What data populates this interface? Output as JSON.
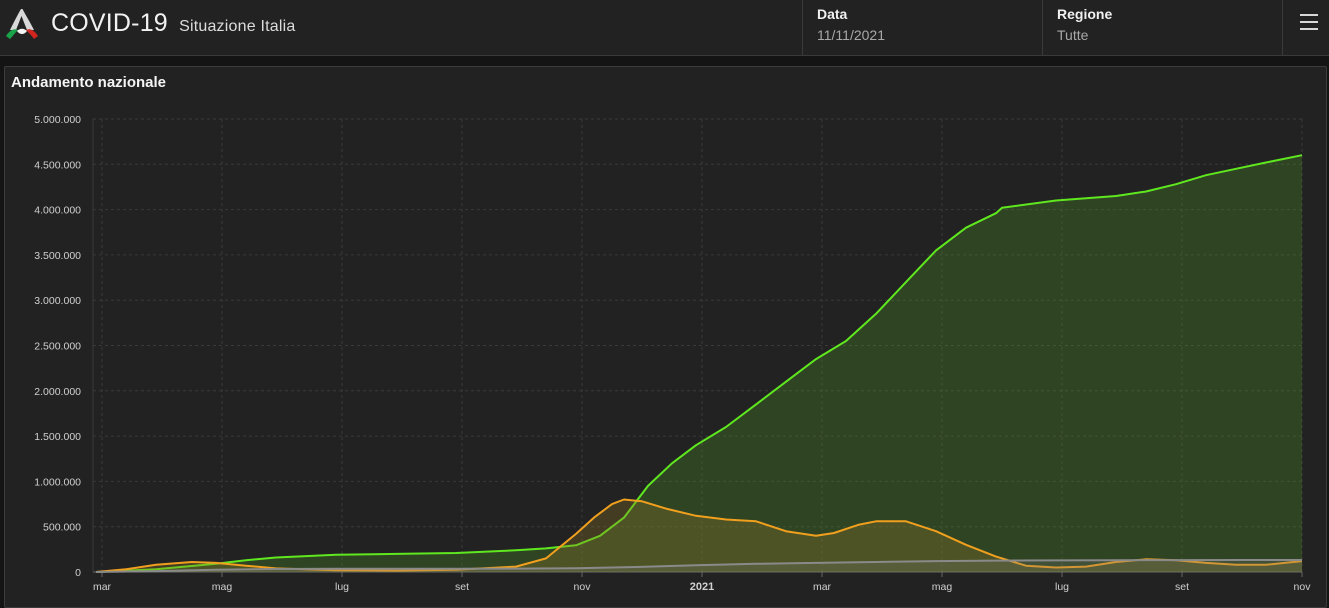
{
  "header": {
    "title": "COVID-19",
    "subtitle": "Situazione Italia",
    "date_label": "Data",
    "date_value": "11/11/2021",
    "region_label": "Regione",
    "region_value": "Tutte"
  },
  "panel": {
    "title": "Andamento nazionale"
  },
  "colors": {
    "green": "#5fe81f",
    "orange": "#f0a01e",
    "gray": "#8a8a8a"
  },
  "icons": {
    "logo": "italy-flag-icon",
    "menu": "hamburger-menu-icon"
  },
  "chart_data": {
    "type": "area",
    "title": "Andamento nazionale",
    "xlabel": "",
    "ylabel": "",
    "x_unit": "months since Feb 2020",
    "xlim": [
      -0.05,
      20.1
    ],
    "ylim": [
      0,
      5000000
    ],
    "yticks": [
      "0",
      "500.000",
      "1.000.000",
      "1.500.000",
      "2.000.000",
      "2.500.000",
      "3.000.000",
      "3.500.000",
      "4.000.000",
      "4.500.000",
      "5.000.000"
    ],
    "xticks": [
      {
        "x": 0.1,
        "label": "mar",
        "bold": false
      },
      {
        "x": 2.1,
        "label": "mag",
        "bold": false
      },
      {
        "x": 4.1,
        "label": "lug",
        "bold": false
      },
      {
        "x": 6.1,
        "label": "set",
        "bold": false
      },
      {
        "x": 8.1,
        "label": "nov",
        "bold": false
      },
      {
        "x": 10.1,
        "label": "2021",
        "bold": true
      },
      {
        "x": 12.1,
        "label": "mar",
        "bold": false
      },
      {
        "x": 14.1,
        "label": "mag",
        "bold": false
      },
      {
        "x": 16.1,
        "label": "lug",
        "bold": false
      },
      {
        "x": 18.1,
        "label": "set",
        "bold": false
      },
      {
        "x": 20.1,
        "label": "nov",
        "bold": false
      }
    ],
    "grid": true,
    "series": [
      {
        "color": "#5fe81f",
        "fill": "rgba(80,150,40,0.30)",
        "points": [
          [
            0,
            0
          ],
          [
            1,
            30000
          ],
          [
            2,
            90000
          ],
          [
            2.5,
            130000
          ],
          [
            3,
            160000
          ],
          [
            4,
            190000
          ],
          [
            5,
            200000
          ],
          [
            6,
            210000
          ],
          [
            7,
            240000
          ],
          [
            7.5,
            260000
          ],
          [
            8,
            295000
          ],
          [
            8.4,
            400000
          ],
          [
            8.8,
            600000
          ],
          [
            9.2,
            950000
          ],
          [
            9.6,
            1200000
          ],
          [
            10,
            1400000
          ],
          [
            10.5,
            1600000
          ],
          [
            11,
            1850000
          ],
          [
            11.5,
            2100000
          ],
          [
            12,
            2350000
          ],
          [
            12.5,
            2550000
          ],
          [
            13,
            2850000
          ],
          [
            13.5,
            3200000
          ],
          [
            14,
            3550000
          ],
          [
            14.5,
            3800000
          ],
          [
            15,
            3960000
          ],
          [
            15.1,
            4020000
          ],
          [
            16,
            4100000
          ],
          [
            17,
            4150000
          ],
          [
            17.5,
            4200000
          ],
          [
            18,
            4280000
          ],
          [
            18.5,
            4380000
          ],
          [
            19,
            4450000
          ],
          [
            19.5,
            4520000
          ],
          [
            20.1,
            4600000
          ]
        ]
      },
      {
        "color": "#f0a01e",
        "fill": "rgba(150,120,40,0.30)",
        "points": [
          [
            0,
            0
          ],
          [
            0.5,
            30000
          ],
          [
            1,
            80000
          ],
          [
            1.6,
            110000
          ],
          [
            2,
            100000
          ],
          [
            2.5,
            70000
          ],
          [
            3,
            40000
          ],
          [
            4,
            20000
          ],
          [
            5,
            15000
          ],
          [
            6,
            25000
          ],
          [
            7,
            60000
          ],
          [
            7.5,
            150000
          ],
          [
            8,
            420000
          ],
          [
            8.3,
            600000
          ],
          [
            8.6,
            750000
          ],
          [
            8.8,
            800000
          ],
          [
            9.1,
            780000
          ],
          [
            9.5,
            700000
          ],
          [
            10,
            620000
          ],
          [
            10.5,
            580000
          ],
          [
            11,
            560000
          ],
          [
            11.5,
            450000
          ],
          [
            12,
            400000
          ],
          [
            12.3,
            430000
          ],
          [
            12.7,
            520000
          ],
          [
            13,
            560000
          ],
          [
            13.5,
            560000
          ],
          [
            14,
            450000
          ],
          [
            14.5,
            300000
          ],
          [
            15,
            170000
          ],
          [
            15.5,
            70000
          ],
          [
            16,
            50000
          ],
          [
            16.5,
            60000
          ],
          [
            17,
            110000
          ],
          [
            17.5,
            140000
          ],
          [
            18,
            130000
          ],
          [
            18.5,
            100000
          ],
          [
            19,
            80000
          ],
          [
            19.5,
            80000
          ],
          [
            20.1,
            120000
          ]
        ]
      },
      {
        "color": "#8a8a8a",
        "fill": "rgba(120,120,120,0.25)",
        "points": [
          [
            0,
            0
          ],
          [
            1,
            10000
          ],
          [
            2,
            25000
          ],
          [
            3,
            33000
          ],
          [
            4,
            35000
          ],
          [
            5,
            35000
          ],
          [
            6,
            36000
          ],
          [
            7,
            38000
          ],
          [
            8,
            42000
          ],
          [
            9,
            55000
          ],
          [
            10,
            75000
          ],
          [
            11,
            90000
          ],
          [
            12,
            100000
          ],
          [
            13,
            110000
          ],
          [
            14,
            120000
          ],
          [
            15,
            126000
          ],
          [
            16,
            128000
          ],
          [
            17,
            130000
          ],
          [
            18,
            131000
          ],
          [
            19,
            132000
          ],
          [
            20.1,
            133000
          ]
        ]
      }
    ]
  }
}
